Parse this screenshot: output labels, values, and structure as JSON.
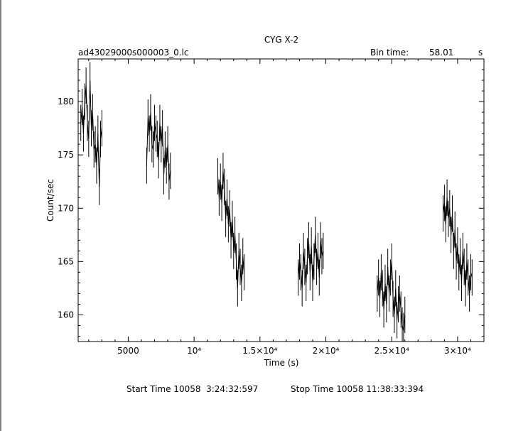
{
  "chart_data": {
    "type": "line",
    "title": "CYG X-2",
    "file_label": "ad43029000s000003_0.lc",
    "bin_time_label": "Bin time:",
    "bin_time_value": "58.01",
    "bin_time_unit": "s",
    "xlabel": "Time (s)",
    "ylabel": "Count/sec",
    "xlim": [
      1200,
      32000
    ],
    "ylim": [
      157.5,
      184
    ],
    "x_ticks": [
      {
        "value": 5000,
        "label": "5000"
      },
      {
        "value": 10000,
        "label": "10⁴"
      },
      {
        "value": 15000,
        "label": "1.5×10⁴"
      },
      {
        "value": 20000,
        "label": "2×10⁴"
      },
      {
        "value": 25000,
        "label": "2.5×10⁴"
      },
      {
        "value": 30000,
        "label": "3×10⁴"
      }
    ],
    "y_ticks": [
      160,
      165,
      170,
      175,
      180
    ],
    "grid": false,
    "series": [
      {
        "x": [
          1400,
          1500,
          1600,
          1700,
          1800,
          1900,
          2000,
          2100,
          2200,
          2300,
          2400,
          2500,
          2600,
          2700,
          2800,
          2900,
          3000,
          6400,
          6500,
          6600,
          6700,
          6800,
          6900,
          7000,
          7100,
          7200,
          7300,
          7400,
          7500,
          7600,
          7700,
          7800,
          7900,
          8000,
          8100,
          8200,
          11800,
          11900,
          12000,
          12100,
          12200,
          12300,
          12400,
          12500,
          12600,
          12700,
          12800,
          12900,
          13000,
          13100,
          13200,
          13300,
          13400,
          13500,
          13600,
          13700,
          13800,
          17900,
          18000,
          18100,
          18200,
          18300,
          18400,
          18500,
          18600,
          18700,
          18800,
          18900,
          19000,
          19100,
          19200,
          19300,
          19400,
          19500,
          19600,
          19700,
          19800,
          23900,
          24000,
          24100,
          24200,
          24300,
          24400,
          24500,
          24600,
          24700,
          24800,
          24900,
          25000,
          25100,
          25200,
          25300,
          25400,
          25500,
          25600,
          25700,
          25800,
          25900,
          26000,
          28900,
          29000,
          29100,
          29200,
          29300,
          29400,
          29500,
          29600,
          29700,
          29800,
          29900,
          30000,
          30100,
          30200,
          30300,
          30400,
          30500,
          30600,
          30700,
          30800,
          30900,
          31000,
          31100
        ],
        "y": [
          178,
          179.5,
          177,
          180,
          181.5,
          178,
          176.5,
          182,
          177.5,
          179,
          175.5,
          176,
          174,
          177,
          172,
          176.5,
          177.5,
          174,
          178.5,
          177,
          179,
          176,
          175.5,
          178,
          177,
          176.5,
          174.5,
          178,
          176,
          177.5,
          173,
          175.5,
          174,
          176,
          172.5,
          173.5,
          173,
          171,
          172.5,
          170.5,
          173.5,
          172,
          169,
          171,
          168.5,
          170,
          167,
          169,
          166,
          167.5,
          165,
          162.5,
          166,
          164.5,
          163,
          165.5,
          164,
          163.5,
          165,
          164,
          162.5,
          166,
          164.5,
          163,
          165.5,
          167,
          164,
          166.5,
          163,
          165,
          167.5,
          164.5,
          166,
          163.5,
          167,
          165.5,
          166,
          162,
          163.5,
          161.5,
          164,
          162.5,
          160.5,
          163,
          161,
          164.5,
          162,
          163.5,
          165,
          161.5,
          160,
          162.5,
          159.5,
          161,
          162,
          160.5,
          159,
          158.5,
          160,
          169.5,
          170.5,
          168.5,
          171,
          169,
          170,
          167.5,
          169.5,
          166,
          168,
          165,
          166.5,
          164,
          165.5,
          163,
          166,
          164.5,
          162.5,
          165,
          163.5,
          162,
          164,
          163.5
        ],
        "errors": [
          1.7,
          1.7,
          1.7,
          1.7,
          1.7,
          1.7,
          1.7,
          1.7,
          1.7,
          1.7,
          1.7,
          1.7,
          1.7,
          1.7,
          1.7,
          1.7,
          1.7,
          1.7,
          1.7,
          1.7,
          1.7,
          1.7,
          1.7,
          1.7,
          1.7,
          1.7,
          1.7,
          1.7,
          1.7,
          1.7,
          1.7,
          1.7,
          1.7,
          1.7,
          1.7,
          1.7,
          1.7,
          1.7,
          1.7,
          1.7,
          1.7,
          1.7,
          1.7,
          1.7,
          1.7,
          1.7,
          1.7,
          1.7,
          1.7,
          1.7,
          1.7,
          1.7,
          1.7,
          1.7,
          1.7,
          1.7,
          1.7,
          1.7,
          1.7,
          1.7,
          1.7,
          1.7,
          1.7,
          1.7,
          1.7,
          1.7,
          1.7,
          1.7,
          1.7,
          1.7,
          1.7,
          1.7,
          1.7,
          1.7,
          1.7,
          1.7,
          1.7,
          1.7,
          1.7,
          1.7,
          1.7,
          1.7,
          1.7,
          1.7,
          1.7,
          1.7,
          1.7,
          1.7,
          1.7,
          1.7,
          1.7,
          1.7,
          1.7,
          1.7,
          1.7,
          1.7,
          1.7,
          1.7,
          1.7,
          1.7,
          1.7,
          1.7,
          1.7,
          1.7,
          1.7,
          1.7,
          1.7,
          1.7,
          1.7,
          1.7,
          1.7,
          1.7,
          1.7,
          1.7,
          1.7,
          1.7,
          1.7,
          1.7,
          1.7,
          1.7,
          1.7,
          1.7
        ]
      }
    ]
  },
  "footer": {
    "start_time": "Start Time 10058  3:24:32:597",
    "stop_time": "Stop Time 10058 11:38:33:394"
  }
}
